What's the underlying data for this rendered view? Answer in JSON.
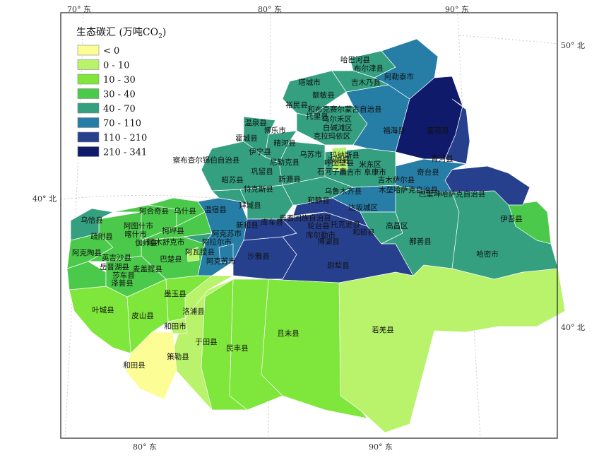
{
  "legend": {
    "title": "生态碳汇 (万吨CO",
    "title_sub": "2",
    "title_end": ")",
    "classes": [
      {
        "label": "< 0",
        "color": "#fdfd96"
      },
      {
        "label": "0 - 10",
        "color": "#b9f26b"
      },
      {
        "label": "10 - 30",
        "color": "#7fe63c"
      },
      {
        "label": "30 - 40",
        "color": "#4bc94a"
      },
      {
        "label": "40 - 70",
        "color": "#34a07f"
      },
      {
        "label": "70 - 110",
        "color": "#267da6"
      },
      {
        "label": "110 - 210",
        "color": "#27408e"
      },
      {
        "label": "210 - 341",
        "color": "#0f1a6b"
      }
    ]
  },
  "coordinates": {
    "top_70": "70° 东",
    "top_80": "80° 东",
    "top_90": "90° 东",
    "bottom_80": "80° 东",
    "bottom_90": "90° 东",
    "right_50": "50° 北",
    "right_40": "40° 北",
    "left_40": "40° 北"
  },
  "counties": [
    {
      "name": "哈巴河县",
      "cls": 4
    },
    {
      "name": "布尔津县",
      "cls": 4
    },
    {
      "name": "阿勒泰市",
      "cls": 5
    },
    {
      "name": "吉木乃县",
      "cls": 4
    },
    {
      "name": "塔城市",
      "cls": 4
    },
    {
      "name": "额敏县",
      "cls": 4
    },
    {
      "name": "裕民县",
      "cls": 4
    },
    {
      "name": "和布克赛尔蒙古自治县",
      "cls": 5
    },
    {
      "name": "福海县",
      "cls": 7
    },
    {
      "name": "富蕴县",
      "cls": 7
    },
    {
      "name": "青河县",
      "cls": 6
    },
    {
      "name": "托里县",
      "cls": 4
    },
    {
      "name": "乌尔禾区",
      "cls": 4
    },
    {
      "name": "白碱滩区",
      "cls": 4
    },
    {
      "name": "克拉玛依区",
      "cls": 4
    },
    {
      "name": "温泉县",
      "cls": 4
    },
    {
      "name": "博乐市",
      "cls": 4
    },
    {
      "name": "霍城县",
      "cls": 4
    },
    {
      "name": "精河县",
      "cls": 4
    },
    {
      "name": "伊宁县",
      "cls": 4
    },
    {
      "name": "察布查尔锡伯自治县",
      "cls": 4
    },
    {
      "name": "尼勒克县",
      "cls": 4
    },
    {
      "name": "巩留县",
      "cls": 4
    },
    {
      "name": "昭苏县",
      "cls": 4
    },
    {
      "name": "特克斯县",
      "cls": 4
    },
    {
      "name": "新源县",
      "cls": 4
    },
    {
      "name": "乌苏市",
      "cls": 4
    },
    {
      "name": "沙湾县",
      "cls": 4
    },
    {
      "name": "石河子市",
      "cls": 4
    },
    {
      "name": "玛纳斯县",
      "cls": 4
    },
    {
      "name": "呼图壁县",
      "cls": 4
    },
    {
      "name": "米东区",
      "cls": 4
    },
    {
      "name": "昌吉市",
      "cls": 4
    },
    {
      "name": "阜康市",
      "cls": 4
    },
    {
      "name": "吉木萨尔县",
      "cls": 5
    },
    {
      "name": "奇台县",
      "cls": 5
    },
    {
      "name": "木垒哈萨克自治县",
      "cls": 5
    },
    {
      "name": "巴里坤哈萨克自治县",
      "cls": 6
    },
    {
      "name": "伊吾县",
      "cls": 3
    },
    {
      "name": "哈密市",
      "cls": 4
    },
    {
      "name": "和静县",
      "cls": 4
    },
    {
      "name": "乌鲁木齐县",
      "cls": 4
    },
    {
      "name": "达坂城区",
      "cls": 4
    },
    {
      "name": "拜城县",
      "cls": 4
    },
    {
      "name": "新和县",
      "cls": 4
    },
    {
      "name": "库车县",
      "cls": 6
    },
    {
      "name": "焉耆回族自治县",
      "cls": 6
    },
    {
      "name": "轮台县",
      "cls": 6
    },
    {
      "name": "尉犁县",
      "cls": 6
    },
    {
      "name": "和硕县",
      "cls": 6
    },
    {
      "name": "博湖县",
      "cls": 6
    },
    {
      "name": "库尔勒市",
      "cls": 6
    },
    {
      "name": "托克逊县",
      "cls": 4
    },
    {
      "name": "高昌区",
      "cls": 4
    },
    {
      "name": "鄯善县",
      "cls": 4
    },
    {
      "name": "乌恰县",
      "cls": 4
    },
    {
      "name": "阿合奇县",
      "cls": 3
    },
    {
      "name": "乌什县",
      "cls": 3
    },
    {
      "name": "温宿县",
      "cls": 5
    },
    {
      "name": "阿克苏市",
      "cls": 5
    },
    {
      "name": "阿拉尔市",
      "cls": 5
    },
    {
      "name": "阿克苏市",
      "cls": 5
    },
    {
      "name": "沙雅县",
      "cls": 6
    },
    {
      "name": "阿图什市",
      "cls": 3
    },
    {
      "name": "柯坪县",
      "cls": 3
    },
    {
      "name": "疏附县",
      "cls": 3
    },
    {
      "name": "喀什市",
      "cls": 3
    },
    {
      "name": "伽师县",
      "cls": 3
    },
    {
      "name": "图木舒克市",
      "cls": 3
    },
    {
      "name": "阿瓦提县",
      "cls": 4
    },
    {
      "name": "阿克陶县",
      "cls": 3
    },
    {
      "name": "英吉沙县",
      "cls": 3
    },
    {
      "name": "巴楚县",
      "cls": 3
    },
    {
      "name": "岳普湖县",
      "cls": 3
    },
    {
      "name": "麦盖提县",
      "cls": 3
    },
    {
      "name": "莎车县",
      "cls": 3
    },
    {
      "name": "泽普县",
      "cls": 3
    },
    {
      "name": "叶城县",
      "cls": 2
    },
    {
      "name": "墨玉县",
      "cls": 2
    },
    {
      "name": "皮山县",
      "cls": 2
    },
    {
      "name": "洛浦县",
      "cls": 1
    },
    {
      "name": "和田市",
      "cls": 1
    },
    {
      "name": "和田县",
      "cls": 0
    },
    {
      "name": "策勒县",
      "cls": 1
    },
    {
      "name": "于田县",
      "cls": 2
    },
    {
      "name": "民丰县",
      "cls": 2
    },
    {
      "name": "且末县",
      "cls": 2
    },
    {
      "name": "若羌县",
      "cls": 1
    }
  ]
}
